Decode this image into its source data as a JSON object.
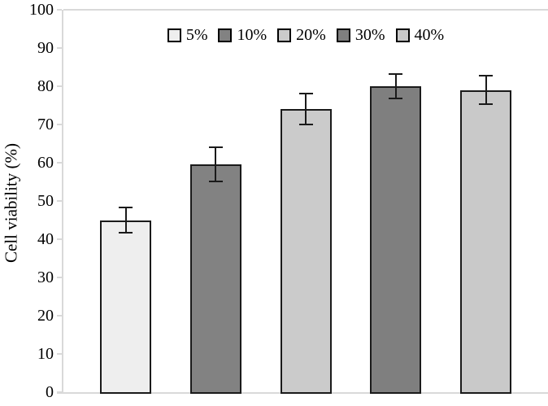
{
  "chart_data": {
    "type": "bar",
    "title": "",
    "xlabel": "",
    "ylabel": "Cell viability (%)",
    "ylim": [
      0,
      100
    ],
    "yticks": [
      0,
      10,
      20,
      30,
      40,
      50,
      60,
      70,
      80,
      90,
      100
    ],
    "grid": false,
    "legend_position": "top-center",
    "categories": [
      "5%",
      "10%",
      "20%",
      "30%",
      "40%"
    ],
    "values": [
      45,
      59.5,
      74,
      80,
      79
    ],
    "errors": [
      3.5,
      4.7,
      4.3,
      3.3,
      3.9
    ],
    "bar_colors": [
      "#eeeeee",
      "#828282",
      "#cbcbcb",
      "#7f7f7f",
      "#c9c9c9"
    ],
    "bar_border_color": "#1a1a1a",
    "axis_color": "#d9d9d9",
    "text_color": "#000000"
  }
}
